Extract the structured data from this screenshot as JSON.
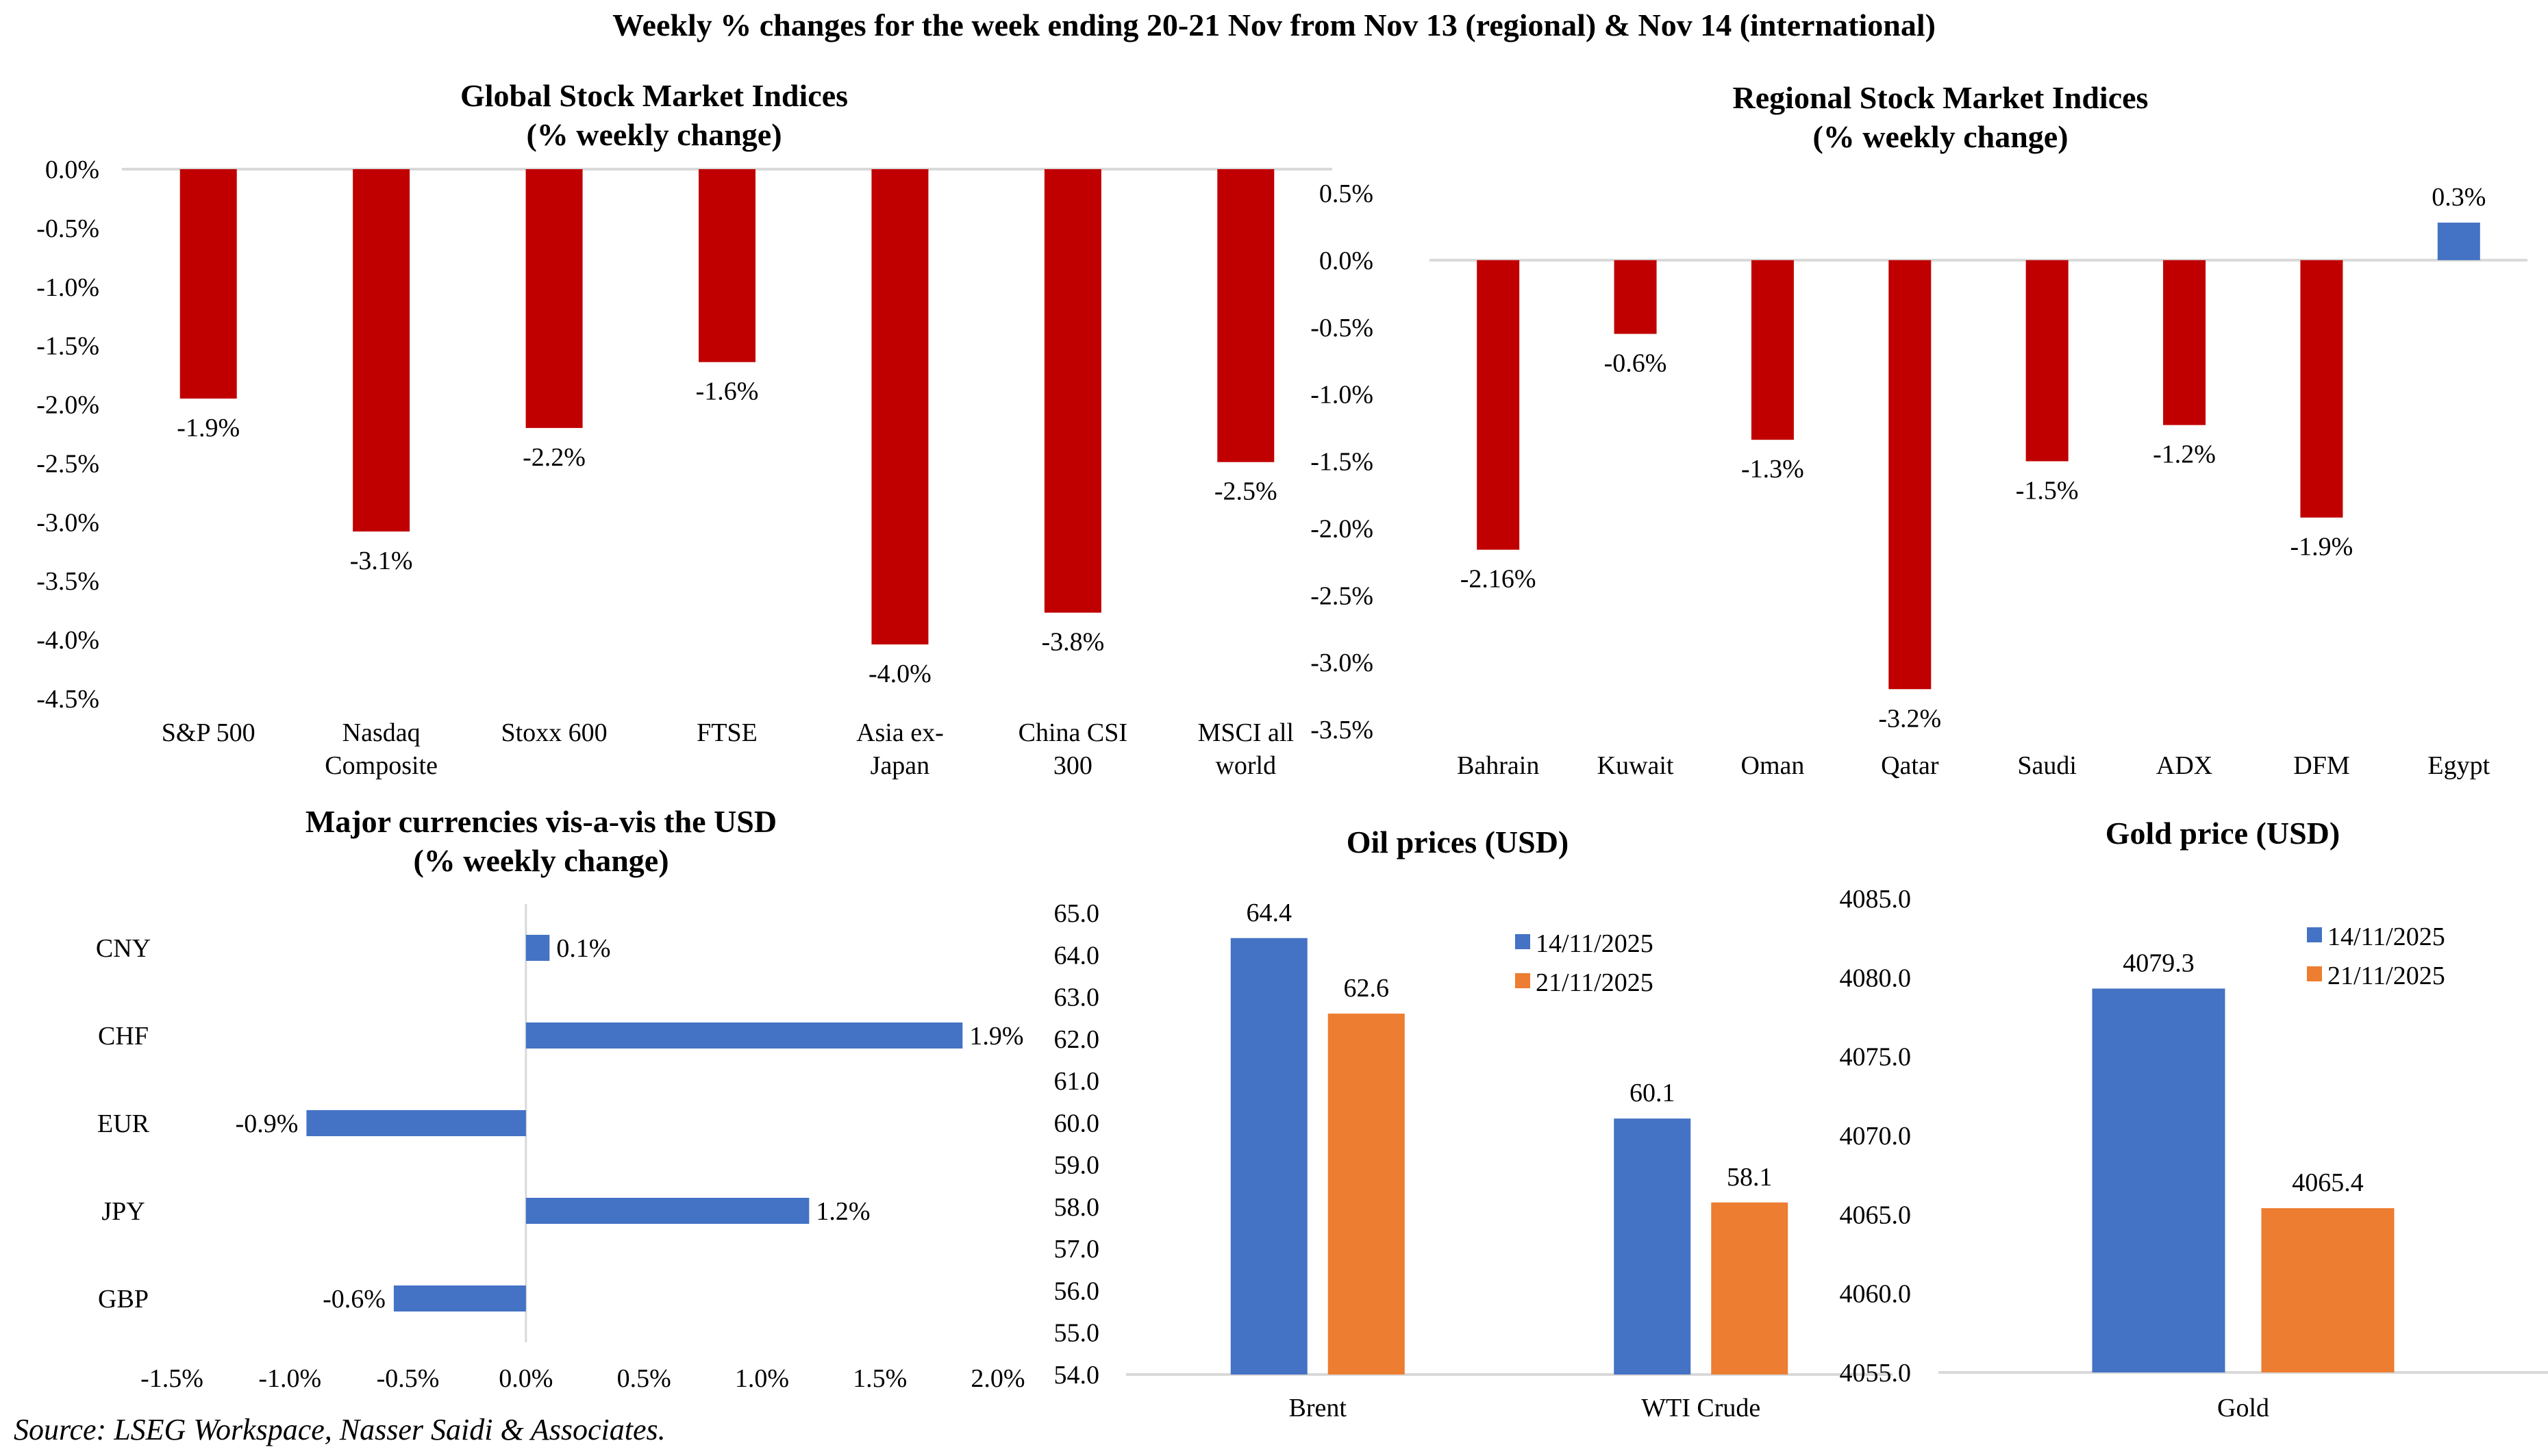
{
  "page_title": "Weekly % changes for the week ending 20-21 Nov from Nov 13 (regional) & Nov 14 (international)",
  "source": "Source: LSEG Workspace, Nasser Saidi & Associates.",
  "colors": {
    "negative_bar": "#C00000",
    "positive_bar": "#4472C4",
    "series_1": "#4472C4",
    "series_2": "#ED7D31",
    "axis_line": "#D9D9D9"
  },
  "chart_data": [
    {
      "id": "global",
      "type": "bar",
      "title": [
        "Global Stock Market Indices",
        "(% weekly change)"
      ],
      "categories": [
        [
          "S&P 500"
        ],
        [
          "Nasdaq",
          "Composite"
        ],
        [
          "Stoxx 600"
        ],
        [
          "FTSE"
        ],
        [
          "Asia ex-",
          "Japan"
        ],
        [
          "China CSI",
          "300"
        ],
        [
          "MSCI all",
          "world"
        ]
      ],
      "values": [
        -1.95,
        -3.08,
        -2.2,
        -1.64,
        -4.04,
        -3.77,
        -2.49
      ],
      "data_labels": [
        "-1.9%",
        "-3.1%",
        "-2.2%",
        "-1.6%",
        "-4.0%",
        "-3.8%",
        "-2.5%"
      ],
      "ylim": [
        -4.5,
        0.0
      ],
      "yticks": [
        0.0,
        -0.5,
        -1.0,
        -1.5,
        -2.0,
        -2.5,
        -3.0,
        -3.5,
        -4.0,
        -4.5
      ],
      "ytick_labels": [
        "0.0%",
        "-0.5%",
        "-1.0%",
        "-1.5%",
        "-2.0%",
        "-2.5%",
        "-3.0%",
        "-3.5%",
        "-4.0%",
        "-4.5%"
      ],
      "xlabel": "",
      "ylabel": "",
      "grid": false,
      "legend": "none"
    },
    {
      "id": "regional",
      "type": "bar",
      "title": [
        "Regional Stock Market Indices",
        "(% weekly change)"
      ],
      "categories": [
        [
          "Bahrain"
        ],
        [
          "Kuwait"
        ],
        [
          "Oman"
        ],
        [
          "Qatar"
        ],
        [
          "Saudi"
        ],
        [
          "ADX"
        ],
        [
          "DFM"
        ],
        [
          "Egypt"
        ]
      ],
      "values": [
        -2.16,
        -0.55,
        -1.34,
        -3.2,
        -1.5,
        -1.23,
        -1.92,
        0.28
      ],
      "data_labels": [
        "-2.16%",
        "-0.6%",
        "-1.3%",
        "-3.2%",
        "-1.5%",
        "-1.2%",
        "-1.9%",
        "0.3%"
      ],
      "ylim": [
        -3.5,
        0.5
      ],
      "yticks": [
        0.5,
        0.0,
        -0.5,
        -1.0,
        -1.5,
        -2.0,
        -2.5,
        -3.0,
        -3.5
      ],
      "ytick_labels": [
        "0.5%",
        "0.0%",
        "-0.5%",
        "-1.0%",
        "-1.5%",
        "-2.0%",
        "-2.5%",
        "-3.0%",
        "-3.5%"
      ],
      "xlabel": "",
      "ylabel": "",
      "grid": false,
      "legend": "none"
    },
    {
      "id": "currencies",
      "type": "bar",
      "orientation": "horizontal",
      "title": [
        "Major currencies vis-a-vis the USD",
        "(% weekly change)"
      ],
      "categories": [
        "CNY",
        "CHF",
        "EUR",
        "JPY",
        "GBP"
      ],
      "values": [
        0.1,
        1.85,
        -0.93,
        1.2,
        -0.56
      ],
      "data_labels": [
        "0.1%",
        "1.9%",
        "-0.9%",
        "1.2%",
        "-0.6%"
      ],
      "xlim": [
        -1.5,
        2.0
      ],
      "xticks": [
        -1.5,
        -1.0,
        -0.5,
        0.0,
        0.5,
        1.0,
        1.5,
        2.0
      ],
      "xtick_labels": [
        "-1.5%",
        "-1.0%",
        "-0.5%",
        "0.0%",
        "0.5%",
        "1.0%",
        "1.5%",
        "2.0%"
      ],
      "xlabel": "",
      "ylabel": "",
      "grid": false,
      "legend": "none"
    },
    {
      "id": "oil",
      "type": "bar",
      "title": [
        "Oil prices (USD)"
      ],
      "categories": [
        "Brent",
        "WTI Crude"
      ],
      "series": [
        {
          "name": "14/11/2025",
          "values": [
            64.4,
            60.1
          ],
          "data_labels": [
            "64.4",
            "60.1"
          ]
        },
        {
          "name": "21/11/2025",
          "values": [
            62.6,
            58.1
          ],
          "data_labels": [
            "62.6",
            "58.1"
          ]
        }
      ],
      "ylim": [
        54.0,
        65.0
      ],
      "yticks": [
        54.0,
        55.0,
        56.0,
        57.0,
        58.0,
        59.0,
        60.0,
        61.0,
        62.0,
        63.0,
        64.0,
        65.0
      ],
      "ytick_labels": [
        "54.0",
        "55.0",
        "56.0",
        "57.0",
        "58.0",
        "59.0",
        "60.0",
        "61.0",
        "62.0",
        "63.0",
        "64.0",
        "65.0"
      ],
      "xlabel": "",
      "ylabel": "",
      "grid": false,
      "legend": "top-right"
    },
    {
      "id": "gold",
      "type": "bar",
      "title": [
        "Gold price (USD)"
      ],
      "categories": [
        "Gold"
      ],
      "series": [
        {
          "name": "14/11/2025",
          "values": [
            4079.3
          ],
          "data_labels": [
            "4079.3"
          ]
        },
        {
          "name": "21/11/2025",
          "values": [
            4065.4
          ],
          "data_labels": [
            "4065.4"
          ]
        }
      ],
      "ylim": [
        4055.0,
        4085.0
      ],
      "yticks": [
        4055.0,
        4060.0,
        4065.0,
        4070.0,
        4075.0,
        4080.0,
        4085.0
      ],
      "ytick_labels": [
        "4055.0",
        "4060.0",
        "4065.0",
        "4070.0",
        "4075.0",
        "4080.0",
        "4085.0"
      ],
      "xlabel": "",
      "ylabel": "",
      "grid": false,
      "legend": "top-right"
    }
  ]
}
